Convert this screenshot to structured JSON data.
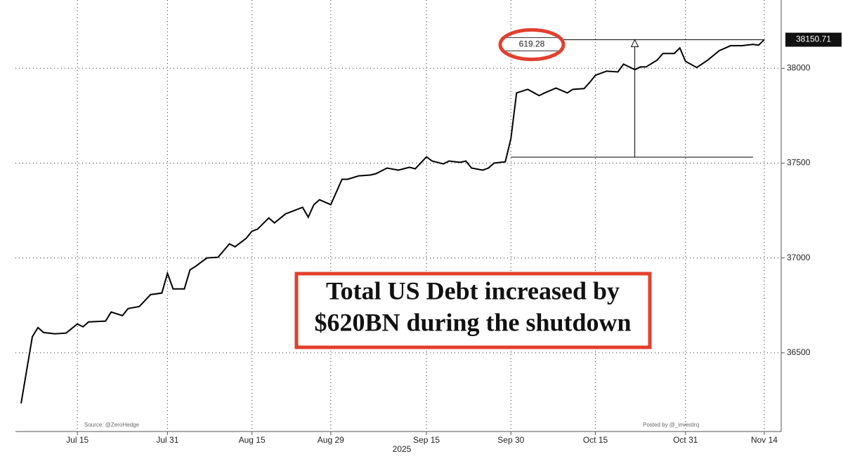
{
  "chart_data": {
    "type": "line",
    "color": "#000000",
    "x": [
      "2025-07-05",
      "2025-07-07",
      "2025-07-08",
      "2025-07-09",
      "2025-07-11",
      "2025-07-13",
      "2025-07-15",
      "2025-07-16",
      "2025-07-17",
      "2025-07-20",
      "2025-07-21",
      "2025-07-23",
      "2025-07-24",
      "2025-07-26",
      "2025-07-28",
      "2025-07-30",
      "2025-07-31",
      "2025-08-01",
      "2025-08-03",
      "2025-08-04",
      "2025-08-05",
      "2025-08-07",
      "2025-08-09",
      "2025-08-11",
      "2025-08-12",
      "2025-08-14",
      "2025-08-15",
      "2025-08-16",
      "2025-08-18",
      "2025-08-19",
      "2025-08-21",
      "2025-08-22",
      "2025-08-24",
      "2025-08-25",
      "2025-08-26",
      "2025-08-27",
      "2025-08-29",
      "2025-08-31",
      "2025-09-01",
      "2025-09-03",
      "2025-09-05",
      "2025-09-06",
      "2025-09-08",
      "2025-09-10",
      "2025-09-12",
      "2025-09-13",
      "2025-09-15",
      "2025-09-16",
      "2025-09-18",
      "2025-09-19",
      "2025-09-21",
      "2025-09-22",
      "2025-09-23",
      "2025-09-25",
      "2025-09-26",
      "2025-09-27",
      "2025-09-29",
      "2025-09-30",
      "2025-10-01",
      "2025-10-03",
      "2025-10-05",
      "2025-10-06",
      "2025-10-08",
      "2025-10-10",
      "2025-10-11",
      "2025-10-13",
      "2025-10-14",
      "2025-10-15",
      "2025-10-17",
      "2025-10-19",
      "2025-10-20",
      "2025-10-22",
      "2025-10-23",
      "2025-10-24",
      "2025-10-26",
      "2025-10-27",
      "2025-10-29",
      "2025-10-30",
      "2025-10-31",
      "2025-11-02",
      "2025-11-04",
      "2025-11-06",
      "2025-11-08",
      "2025-11-10",
      "2025-11-12",
      "2025-11-13",
      "2025-11-14"
    ],
    "values": [
      36233,
      36585,
      36633,
      36607,
      36600,
      36604,
      36652,
      36637,
      36663,
      36667,
      36715,
      36696,
      36733,
      36744,
      36807,
      36815,
      36919,
      36837,
      36837,
      36937,
      36956,
      37000,
      37004,
      37074,
      37059,
      37104,
      37141,
      37152,
      37211,
      37185,
      37233,
      37244,
      37267,
      37215,
      37281,
      37307,
      37281,
      37415,
      37415,
      37433,
      37437,
      37444,
      37474,
      37463,
      37478,
      37470,
      37533,
      37511,
      37496,
      37511,
      37504,
      37511,
      37474,
      37463,
      37474,
      37500,
      37507,
      37630,
      37870,
      37889,
      37856,
      37870,
      37896,
      37870,
      37889,
      37893,
      37926,
      37963,
      37985,
      37981,
      38022,
      37993,
      38007,
      38007,
      38044,
      38078,
      38078,
      38107,
      38037,
      38004,
      38044,
      38093,
      38119,
      38119,
      38126,
      38122,
      38150.71
    ],
    "xlim": [
      "2025-07-04",
      "2025-11-17"
    ],
    "xticks": [
      {
        "value": "2025-07-15",
        "label": "Jul 15"
      },
      {
        "value": "2025-07-31",
        "label": "Jul 31"
      },
      {
        "value": "2025-08-15",
        "label": "Aug 15"
      },
      {
        "value": "2025-08-29",
        "label": "Aug 29"
      },
      {
        "value": "2025-09-15",
        "label": "Sep 15"
      },
      {
        "value": "2025-09-30",
        "label": "Sep 30"
      },
      {
        "value": "2025-10-15",
        "label": "Oct 15"
      },
      {
        "value": "2025-10-31",
        "label": "Oct 31"
      },
      {
        "value": "2025-11-14",
        "label": "Nov 14"
      }
    ],
    "xlabel": "2025",
    "ylim": [
      36085,
      38360
    ],
    "yticks": [
      36500,
      37000,
      37500,
      38000
    ],
    "grid": true,
    "measure": {
      "x0": "2025-09-30",
      "x1": "2025-11-12",
      "arrow_x": "2025-10-22",
      "from": 37531.43,
      "to": 38150.71,
      "label": "619.28"
    },
    "callout": [
      "Total US Debt increased by",
      "$620BN during the shutdown"
    ],
    "source": "Source: @ZeroHedge",
    "posted": "Posted by @_investirq"
  }
}
